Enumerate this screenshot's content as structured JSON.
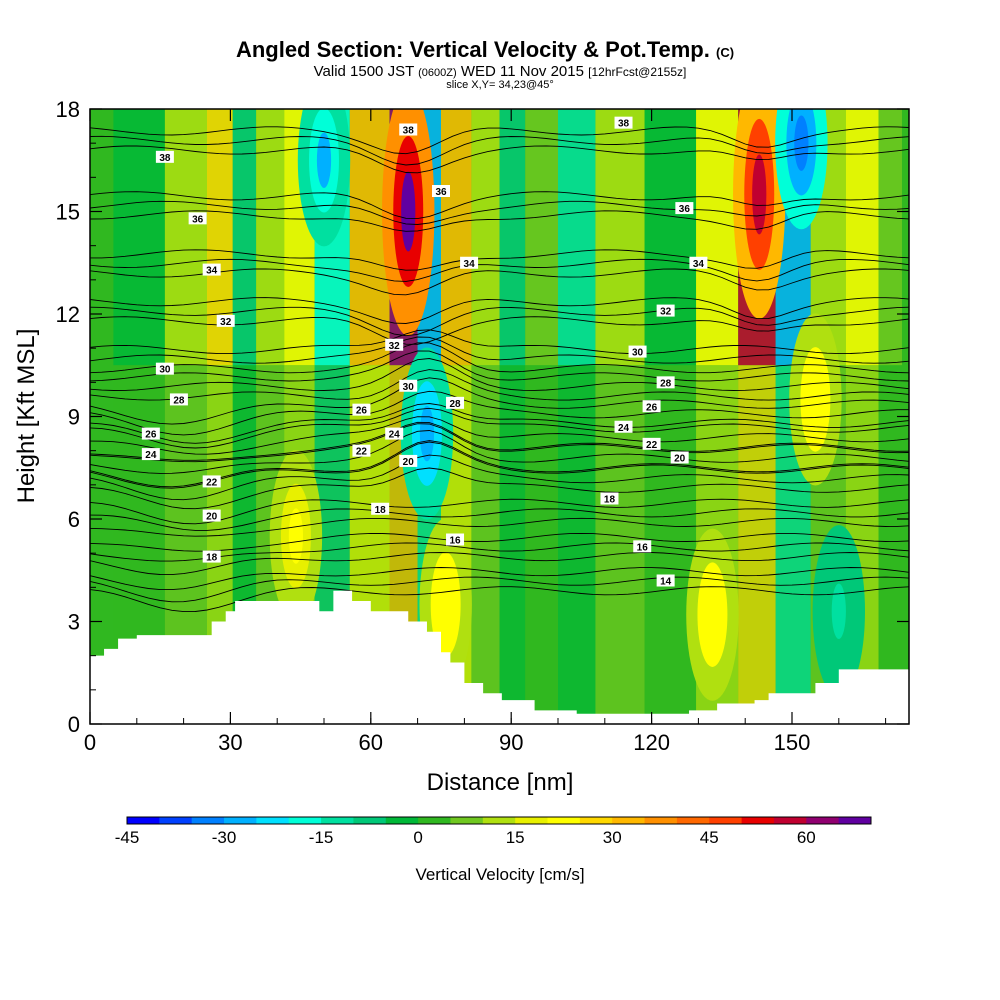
{
  "chart_data": {
    "type": "heatmap",
    "title": "Angled Section: Vertical Velocity & Pot.Temp.",
    "title_unit": "(C)",
    "subtitle": {
      "prefix": "Valid 1500 JST",
      "utc": "(0600Z)",
      "date": "WED 11 Nov 2015",
      "forecast": "[12hrFcst@2155z]"
    },
    "slice": "slice X,Y= 34,23@45°",
    "xlabel": "Distance [nm]",
    "ylabel": "Height [Kft MSL]",
    "xlim": [
      0,
      175
    ],
    "ylim": [
      0,
      18
    ],
    "x_ticks": [
      0,
      30,
      60,
      90,
      120,
      150
    ],
    "y_ticks": [
      0,
      3,
      6,
      9,
      12,
      15,
      18
    ],
    "colorbar": {
      "label": "Vertical Velocity [cm/s]",
      "tick_labels": [
        -45,
        -30,
        -15,
        0,
        15,
        30,
        45,
        60
      ],
      "levels": [
        -45,
        -40,
        -35,
        -30,
        -25,
        -20,
        -15,
        -10,
        -5,
        0,
        5,
        10,
        15,
        20,
        25,
        30,
        35,
        40,
        45,
        50,
        55,
        60,
        65
      ],
      "colors": [
        "#0000ff",
        "#0040ff",
        "#0080ff",
        "#00b0ff",
        "#00e0ff",
        "#00ffd8",
        "#00e0a0",
        "#00c878",
        "#00b838",
        "#30b820",
        "#70c820",
        "#b0e010",
        "#e8f000",
        "#ffff00",
        "#ffd800",
        "#ffb800",
        "#ff9000",
        "#ff6800",
        "#ff4000",
        "#e80000",
        "#c00030",
        "#900070",
        "#6000a0"
      ]
    },
    "vertical_velocity_columns": [
      {
        "x": 10,
        "v": -3
      },
      {
        "x": 22,
        "v": 12
      },
      {
        "x": 28,
        "v": 25
      },
      {
        "x": 33,
        "v": -8
      },
      {
        "x": 38,
        "v": 8
      },
      {
        "x": 45,
        "v": 18
      },
      {
        "x": 51,
        "v": -20
      },
      {
        "x": 60,
        "v": 30
      },
      {
        "x": 68,
        "v": 62
      },
      {
        "x": 72,
        "v": -28
      },
      {
        "x": 78,
        "v": 28
      },
      {
        "x": 85,
        "v": 12
      },
      {
        "x": 90,
        "v": -10
      },
      {
        "x": 96,
        "v": 5
      },
      {
        "x": 104,
        "v": -15
      },
      {
        "x": 112,
        "v": 10
      },
      {
        "x": 125,
        "v": -5
      },
      {
        "x": 134,
        "v": 20
      },
      {
        "x": 143,
        "v": 55
      },
      {
        "x": 150,
        "v": -30
      },
      {
        "x": 158,
        "v": 8
      },
      {
        "x": 165,
        "v": 18
      },
      {
        "x": 172,
        "v": 3
      }
    ],
    "vertical_velocity_cells": [
      {
        "x": 72,
        "y": 8.5,
        "v": -30
      },
      {
        "x": 68,
        "y": 15,
        "v": 65
      },
      {
        "x": 143,
        "y": 15.5,
        "v": 55
      },
      {
        "x": 152,
        "y": 17,
        "v": -35
      },
      {
        "x": 50,
        "y": 16.5,
        "v": -28
      },
      {
        "x": 76,
        "y": 3.5,
        "v": 22
      },
      {
        "x": 133,
        "y": 3.2,
        "v": 22
      },
      {
        "x": 44,
        "y": 5.5,
        "v": 20
      },
      {
        "x": 155,
        "y": 9.5,
        "v": 22
      },
      {
        "x": 160,
        "y": 3.3,
        "v": -15
      }
    ],
    "potential_temperature_contours": [
      {
        "value": 14,
        "labels": [
          {
            "x": 123,
            "y": 4.2
          }
        ]
      },
      {
        "value": 16,
        "labels": [
          {
            "x": 78,
            "y": 5.4
          },
          {
            "x": 118,
            "y": 5.2
          }
        ]
      },
      {
        "value": 18,
        "labels": [
          {
            "x": 26,
            "y": 4.9
          },
          {
            "x": 62,
            "y": 6.3
          },
          {
            "x": 111,
            "y": 6.6
          }
        ]
      },
      {
        "value": 20,
        "labels": [
          {
            "x": 26,
            "y": 6.1
          },
          {
            "x": 68,
            "y": 7.7
          },
          {
            "x": 126,
            "y": 7.8
          }
        ]
      },
      {
        "value": 22,
        "labels": [
          {
            "x": 26,
            "y": 7.1
          },
          {
            "x": 58,
            "y": 8.0
          },
          {
            "x": 120,
            "y": 8.2
          }
        ]
      },
      {
        "value": 24,
        "labels": [
          {
            "x": 13,
            "y": 7.9
          },
          {
            "x": 65,
            "y": 8.5
          },
          {
            "x": 114,
            "y": 8.7
          }
        ]
      },
      {
        "value": 26,
        "labels": [
          {
            "x": 13,
            "y": 8.5
          },
          {
            "x": 58,
            "y": 9.2
          },
          {
            "x": 120,
            "y": 9.3
          }
        ]
      },
      {
        "value": 28,
        "labels": [
          {
            "x": 19,
            "y": 9.5
          },
          {
            "x": 78,
            "y": 9.4
          },
          {
            "x": 123,
            "y": 10.0
          }
        ]
      },
      {
        "value": 30,
        "labels": [
          {
            "x": 16,
            "y": 10.4
          },
          {
            "x": 68,
            "y": 9.9
          },
          {
            "x": 117,
            "y": 10.9
          }
        ]
      },
      {
        "value": 32,
        "labels": [
          {
            "x": 29,
            "y": 11.8
          },
          {
            "x": 65,
            "y": 11.1
          },
          {
            "x": 123,
            "y": 12.1
          }
        ]
      },
      {
        "value": 34,
        "labels": [
          {
            "x": 26,
            "y": 13.3
          },
          {
            "x": 81,
            "y": 13.5
          },
          {
            "x": 130,
            "y": 13.5
          }
        ]
      },
      {
        "value": 36,
        "labels": [
          {
            "x": 23,
            "y": 14.8
          },
          {
            "x": 75,
            "y": 15.6
          },
          {
            "x": 127,
            "y": 15.1
          }
        ]
      },
      {
        "value": 38,
        "labels": [
          {
            "x": 16,
            "y": 16.6
          },
          {
            "x": 68,
            "y": 17.4
          },
          {
            "x": 114,
            "y": 17.6
          }
        ]
      }
    ],
    "terrain_profile": {
      "x": [
        0,
        3,
        6,
        10,
        16,
        22,
        26,
        29,
        31,
        36,
        49,
        52,
        56,
        60,
        64,
        68,
        72,
        75,
        77,
        80,
        84,
        88,
        95,
        104,
        116,
        122,
        124,
        128,
        134,
        142,
        145,
        155,
        160,
        166,
        175
      ],
      "y": [
        2.0,
        2.2,
        2.5,
        2.6,
        2.6,
        2.6,
        3.0,
        3.3,
        3.6,
        3.6,
        3.3,
        3.9,
        3.6,
        3.3,
        3.3,
        3.0,
        2.7,
        2.1,
        1.8,
        1.2,
        0.9,
        0.7,
        0.4,
        0.3,
        0.3,
        0.3,
        0.3,
        0.4,
        0.6,
        0.7,
        0.9,
        1.2,
        1.6,
        1.6,
        1.6
      ]
    }
  }
}
